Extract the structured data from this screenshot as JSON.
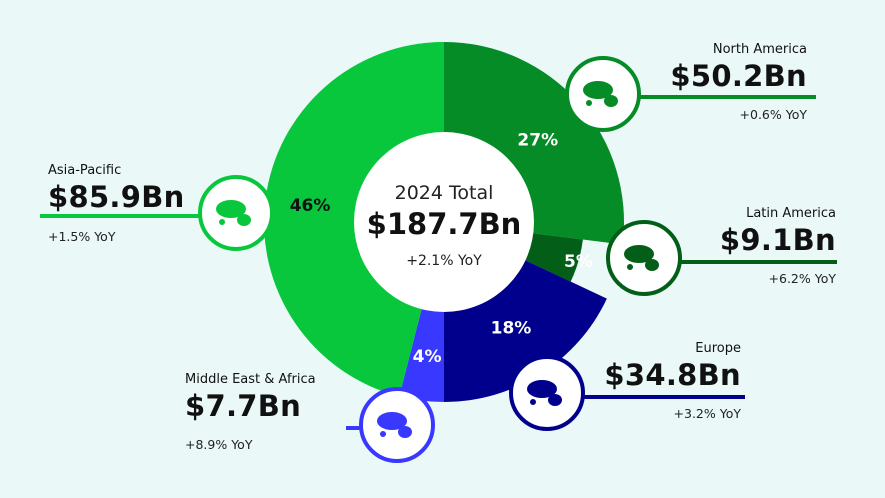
{
  "chart_data": {
    "type": "pie",
    "center": {
      "title": "2024 Total",
      "value": "$187.7Bn",
      "yoy": "+2.1% YoY"
    },
    "slices": [
      {
        "name": "North America",
        "share": 27,
        "label": "27%",
        "value": "$50.2Bn",
        "yoy": "+0.6% YoY",
        "color": "#058c26"
      },
      {
        "name": "Latin America",
        "share": 5,
        "label": "5%",
        "value": "$9.1Bn",
        "yoy": "+6.2% YoY",
        "color": "#035e18"
      },
      {
        "name": "Europe",
        "share": 18,
        "label": "18%",
        "value": "$34.8Bn",
        "yoy": "+3.2% YoY",
        "color": "#01008c"
      },
      {
        "name": "Middle East & Africa",
        "share": 4,
        "label": "4%",
        "value": "$7.7Bn",
        "yoy": "+8.9% YoY",
        "color": "#3838ff"
      },
      {
        "name": "Asia-Pacific",
        "share": 46,
        "label": "46%",
        "value": "$85.9Bn",
        "yoy": "+1.5% YoY",
        "color": "#08c73c"
      }
    ]
  }
}
